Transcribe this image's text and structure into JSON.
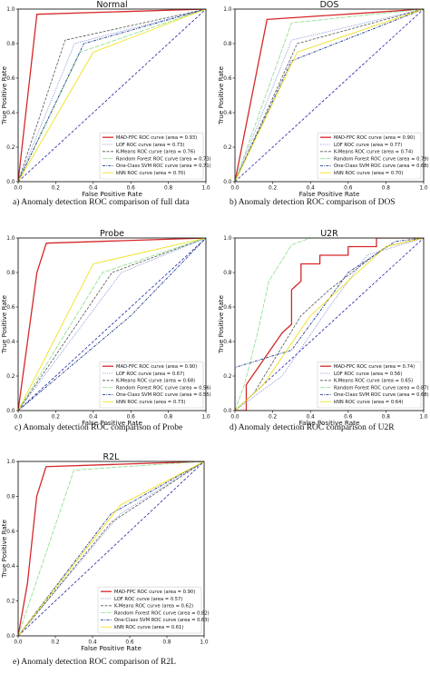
{
  "legend_labels": [
    "MAD-FPC ROC curve",
    "LOF ROC curve",
    "K-Means ROC curve",
    "Random Forest ROC curve",
    "One-Class SVM ROC curve",
    "kNN ROC curve"
  ],
  "area_prefix": "(area = ",
  "area_suffix": ")",
  "series_style": [
    {
      "color": "#d62728",
      "dash": "",
      "width": 1.3
    },
    {
      "color": "#7f8fd8",
      "dash": "1.2,1.2",
      "width": 0.8
    },
    {
      "color": "#555555",
      "dash": "3,1.5",
      "width": 0.8
    },
    {
      "color": "#88dd88",
      "dash": "5,1.5",
      "width": 0.8
    },
    {
      "color": "#1f3d8c",
      "dash": "3,1.2,1,1.2",
      "width": 0.9
    },
    {
      "color": "#eedd00",
      "dash": "",
      "width": 0.8
    }
  ],
  "diagonal_color": "#1f1fa8",
  "ticks": [
    "0.0",
    "0.2",
    "0.4",
    "0.6",
    "0.8",
    "1.0"
  ],
  "tick_values": [
    0,
    0.2,
    0.4,
    0.6,
    0.8,
    1.0
  ],
  "chart_data": [
    {
      "type": "line",
      "title": "Normal",
      "xlabel": "False Positive Rate",
      "ylabel": "True Positive Rate",
      "xlim": [
        0,
        1
      ],
      "ylim": [
        0,
        1
      ],
      "caption": "a) Anomaly detection ROC comparison of full data",
      "series": [
        {
          "name": "MAD-FPC ROC curve",
          "area": "0.93",
          "points": [
            [
              0,
              0
            ],
            [
              0.1,
              0.97
            ],
            [
              1,
              1
            ]
          ]
        },
        {
          "name": "LOF ROC curve",
          "area": "0.73",
          "points": [
            [
              0,
              0
            ],
            [
              0.3,
              0.8
            ],
            [
              1,
              1
            ]
          ]
        },
        {
          "name": "K-Means ROC curve",
          "area": "0.76",
          "points": [
            [
              0,
              0
            ],
            [
              0.25,
              0.82
            ],
            [
              1,
              1
            ]
          ]
        },
        {
          "name": "Random Forest ROC curve",
          "area": "0.73",
          "points": [
            [
              0,
              0
            ],
            [
              0.33,
              0.75
            ],
            [
              1,
              1
            ]
          ]
        },
        {
          "name": "One-Class SVM ROC curve",
          "area": "0.71",
          "points": [
            [
              0,
              0
            ],
            [
              0.35,
              0.8
            ],
            [
              1,
              1
            ]
          ]
        },
        {
          "name": "kNN ROC curve",
          "area": "0.70",
          "points": [
            [
              0,
              0
            ],
            [
              0.4,
              0.75
            ],
            [
              1,
              1
            ]
          ]
        }
      ]
    },
    {
      "type": "line",
      "title": "DOS",
      "xlabel": "False Positive Rate",
      "ylabel": "True Positive Rate",
      "xlim": [
        0,
        1
      ],
      "ylim": [
        0,
        1
      ],
      "caption": "b) Anomaly detection ROC comparison of DOS",
      "series": [
        {
          "name": "MAD-FPC ROC curve",
          "area": "0.90",
          "points": [
            [
              0,
              0
            ],
            [
              0.17,
              0.94
            ],
            [
              1,
              1
            ]
          ]
        },
        {
          "name": "LOF ROC curve",
          "area": "0.77",
          "points": [
            [
              0,
              0
            ],
            [
              0.3,
              0.82
            ],
            [
              1,
              1
            ]
          ]
        },
        {
          "name": "K-Means ROC curve",
          "area": "0.74",
          "points": [
            [
              0,
              0
            ],
            [
              0.33,
              0.8
            ],
            [
              1,
              1
            ]
          ]
        },
        {
          "name": "Random Forest ROC curve",
          "area": "0.79",
          "points": [
            [
              0,
              0
            ],
            [
              0.3,
              0.92
            ],
            [
              1,
              1
            ]
          ]
        },
        {
          "name": "One-Class SVM ROC curve",
          "area": "0.68",
          "points": [
            [
              0,
              0
            ],
            [
              0.3,
              0.7
            ],
            [
              1,
              1
            ]
          ]
        },
        {
          "name": "kNN ROC curve",
          "area": "0.70",
          "points": [
            [
              0,
              0
            ],
            [
              0.33,
              0.75
            ],
            [
              1,
              1
            ]
          ]
        }
      ]
    },
    {
      "type": "line",
      "title": "Probe",
      "xlabel": "False Positive Rate",
      "ylabel": "True Positive Rate",
      "xlim": [
        0,
        1
      ],
      "ylim": [
        0,
        1
      ],
      "caption": "c) Anomaly detection ROC comparison of Probe",
      "series": [
        {
          "name": "MAD-FPC ROC curve",
          "area": "0.90",
          "points": [
            [
              0,
              0
            ],
            [
              0.1,
              0.8
            ],
            [
              0.15,
              0.97
            ],
            [
              1,
              1
            ]
          ]
        },
        {
          "name": "LOF ROC curve",
          "area": "0.67",
          "points": [
            [
              0,
              0
            ],
            [
              0.55,
              0.8
            ],
            [
              1,
              1
            ]
          ]
        },
        {
          "name": "K-Means ROC curve",
          "area": "0.68",
          "points": [
            [
              0,
              0
            ],
            [
              0.5,
              0.8
            ],
            [
              1,
              1
            ]
          ]
        },
        {
          "name": "Random Forest ROC curve",
          "area": "0.56",
          "points": [
            [
              0,
              0
            ],
            [
              0.45,
              0.8
            ],
            [
              1,
              1
            ]
          ]
        },
        {
          "name": "One-Class SVM ROC curve",
          "area": "0.55",
          "points": [
            [
              0,
              0
            ],
            [
              0.6,
              0.55
            ],
            [
              1,
              1
            ]
          ]
        },
        {
          "name": "kNN ROC curve",
          "area": "0.73",
          "points": [
            [
              0,
              0
            ],
            [
              0.4,
              0.85
            ],
            [
              1,
              1
            ]
          ]
        }
      ]
    },
    {
      "type": "line",
      "title": "U2R",
      "xlabel": "False Positive Rate",
      "ylabel": "True Positive Rate",
      "xlim": [
        0,
        1
      ],
      "ylim": [
        0,
        1
      ],
      "caption": "d) Anomaly detection ROC comparison of U2R",
      "series": [
        {
          "name": "MAD-FPC ROC curve",
          "area": "0.74",
          "points": [
            [
              0,
              0
            ],
            [
              0.06,
              0
            ],
            [
              0.06,
              0.15
            ],
            [
              0.25,
              0.45
            ],
            [
              0.3,
              0.5
            ],
            [
              0.3,
              0.7
            ],
            [
              0.35,
              0.75
            ],
            [
              0.35,
              0.85
            ],
            [
              0.45,
              0.85
            ],
            [
              0.45,
              0.9
            ],
            [
              0.6,
              0.9
            ],
            [
              0.6,
              0.95
            ],
            [
              0.75,
              0.95
            ],
            [
              0.75,
              1
            ],
            [
              1,
              1
            ]
          ]
        },
        {
          "name": "LOF ROC curve",
          "area": "0.56",
          "points": [
            [
              0,
              0
            ],
            [
              0.25,
              0.2
            ],
            [
              0.5,
              0.6
            ],
            [
              0.6,
              0.75
            ],
            [
              0.7,
              0.9
            ],
            [
              1,
              1
            ]
          ]
        },
        {
          "name": "K-Means ROC curve",
          "area": "0.65",
          "points": [
            [
              0,
              0
            ],
            [
              0.1,
              0.1
            ],
            [
              0.35,
              0.55
            ],
            [
              0.5,
              0.7
            ],
            [
              0.8,
              0.95
            ],
            [
              1,
              1
            ]
          ]
        },
        {
          "name": "Random Forest ROC curve",
          "area": "0.87",
          "points": [
            [
              0,
              0
            ],
            [
              0.05,
              0.15
            ],
            [
              0.12,
              0.45
            ],
            [
              0.18,
              0.75
            ],
            [
              0.3,
              0.96
            ],
            [
              0.4,
              1
            ],
            [
              1,
              1
            ]
          ]
        },
        {
          "name": "One-Class SVM ROC curve",
          "area": "0.68",
          "points": [
            [
              0,
              0
            ],
            [
              0,
              0.25
            ],
            [
              0.3,
              0.35
            ],
            [
              0.6,
              0.8
            ],
            [
              0.85,
              0.98
            ],
            [
              1,
              1
            ]
          ]
        },
        {
          "name": "kNN ROC curve",
          "area": "0.64",
          "points": [
            [
              0,
              0
            ],
            [
              0.15,
              0.15
            ],
            [
              0.4,
              0.55
            ],
            [
              0.6,
              0.75
            ],
            [
              0.8,
              0.95
            ],
            [
              1,
              1
            ]
          ]
        }
      ]
    },
    {
      "type": "line",
      "title": "R2L",
      "xlabel": "False Positive Rate",
      "ylabel": "True Positive Rate",
      "xlim": [
        0,
        1
      ],
      "ylim": [
        0,
        1
      ],
      "caption": "e) Anomaly detection ROC comparison of R2L",
      "series": [
        {
          "name": "MAD-FPC ROC curve",
          "area": "0.90",
          "points": [
            [
              0,
              0
            ],
            [
              0.05,
              0.3
            ],
            [
              0.1,
              0.8
            ],
            [
              0.15,
              0.97
            ],
            [
              1,
              1
            ]
          ]
        },
        {
          "name": "LOF ROC curve",
          "area": "0.57",
          "points": [
            [
              0,
              0
            ],
            [
              0.55,
              0.7
            ],
            [
              1,
              1
            ]
          ]
        },
        {
          "name": "K-Means ROC curve",
          "area": "0.62",
          "points": [
            [
              0,
              0
            ],
            [
              0.5,
              0.65
            ],
            [
              1,
              1
            ]
          ]
        },
        {
          "name": "Random Forest ROC curve",
          "area": "0.82",
          "points": [
            [
              0,
              0
            ],
            [
              0.3,
              0.95
            ],
            [
              1,
              1
            ]
          ]
        },
        {
          "name": "One-Class SVM ROC curve",
          "area": "0.63",
          "points": [
            [
              0,
              0
            ],
            [
              0.5,
              0.7
            ],
            [
              1,
              1
            ]
          ]
        },
        {
          "name": "kNN ROC curve",
          "area": "0.61",
          "points": [
            [
              0,
              0
            ],
            [
              0.55,
              0.75
            ],
            [
              1,
              1
            ]
          ]
        }
      ]
    }
  ]
}
